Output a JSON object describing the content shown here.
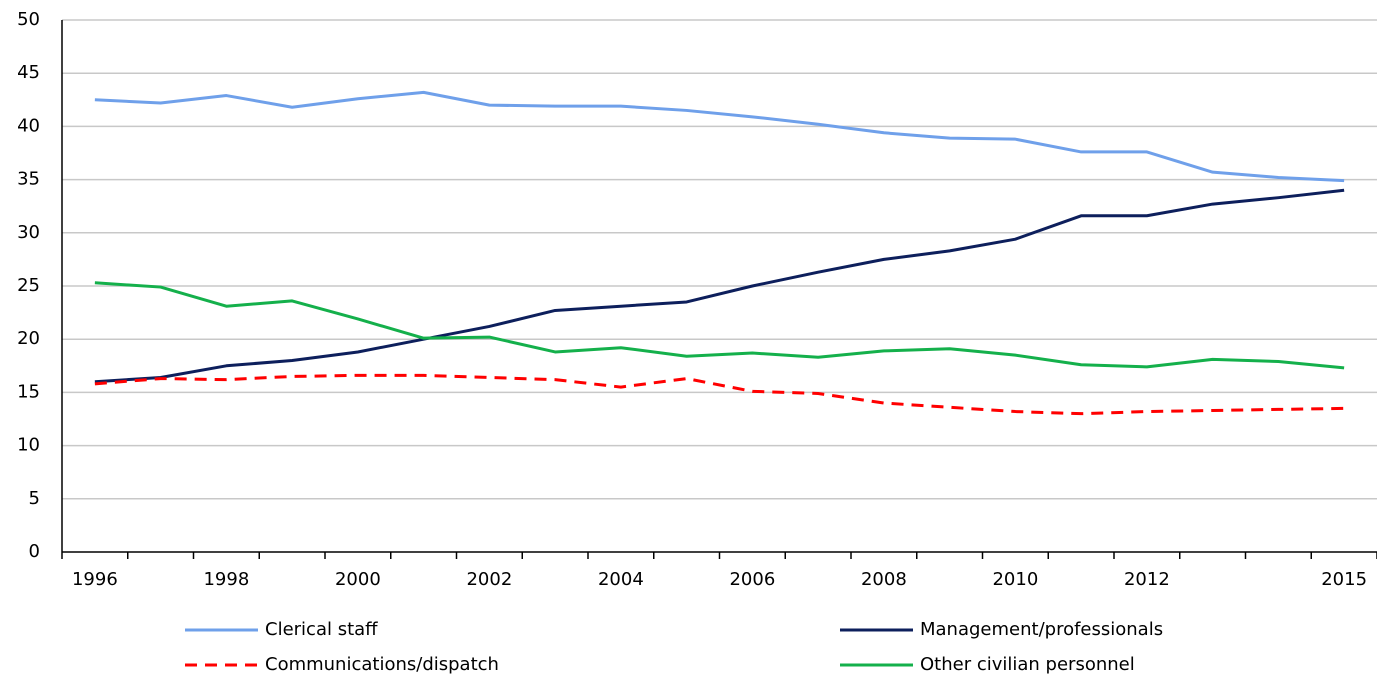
{
  "chart_data": {
    "type": "line",
    "categories": [
      "1996",
      null,
      "1998",
      null,
      "2000",
      null,
      "2002",
      null,
      "2004",
      null,
      "2006",
      null,
      "2008",
      null,
      "2010",
      null,
      "2012",
      null,
      null,
      "2015"
    ],
    "series": [
      {
        "name": "Clerical staff",
        "color": "#6fa0ea",
        "dash": false,
        "values": [
          42.5,
          42.2,
          42.9,
          41.8,
          42.6,
          43.2,
          42.0,
          41.9,
          41.9,
          41.5,
          40.9,
          40.2,
          39.4,
          38.9,
          38.8,
          37.6,
          37.6,
          35.7,
          35.2,
          34.9
        ]
      },
      {
        "name": "Management/professionals",
        "color": "#0d1f5c",
        "dash": false,
        "values": [
          16.0,
          16.4,
          17.5,
          18.0,
          18.8,
          20.0,
          21.2,
          22.7,
          23.1,
          23.5,
          25.0,
          26.3,
          27.5,
          28.3,
          29.4,
          31.6,
          31.6,
          32.7,
          33.3,
          34.0
        ]
      },
      {
        "name": "Communications/dispatch",
        "color": "#ff0000",
        "dash": true,
        "values": [
          15.8,
          16.3,
          16.2,
          16.5,
          16.6,
          16.6,
          16.4,
          16.2,
          15.5,
          16.3,
          15.1,
          14.9,
          14.0,
          13.6,
          13.2,
          13.0,
          13.2,
          13.3,
          13.4,
          13.5
        ]
      },
      {
        "name": "Other civilian personnel",
        "color": "#14b04b",
        "dash": false,
        "values": [
          25.3,
          24.9,
          23.1,
          23.6,
          21.9,
          20.1,
          20.2,
          18.8,
          19.2,
          18.4,
          18.7,
          18.3,
          18.9,
          19.1,
          18.5,
          17.6,
          17.4,
          18.1,
          17.9,
          17.3
        ]
      }
    ],
    "ylim": [
      0,
      50
    ],
    "yticks": [
      0,
      5,
      10,
      15,
      20,
      25,
      30,
      35,
      40,
      45,
      50
    ],
    "grid": true,
    "legend": "bottom"
  }
}
